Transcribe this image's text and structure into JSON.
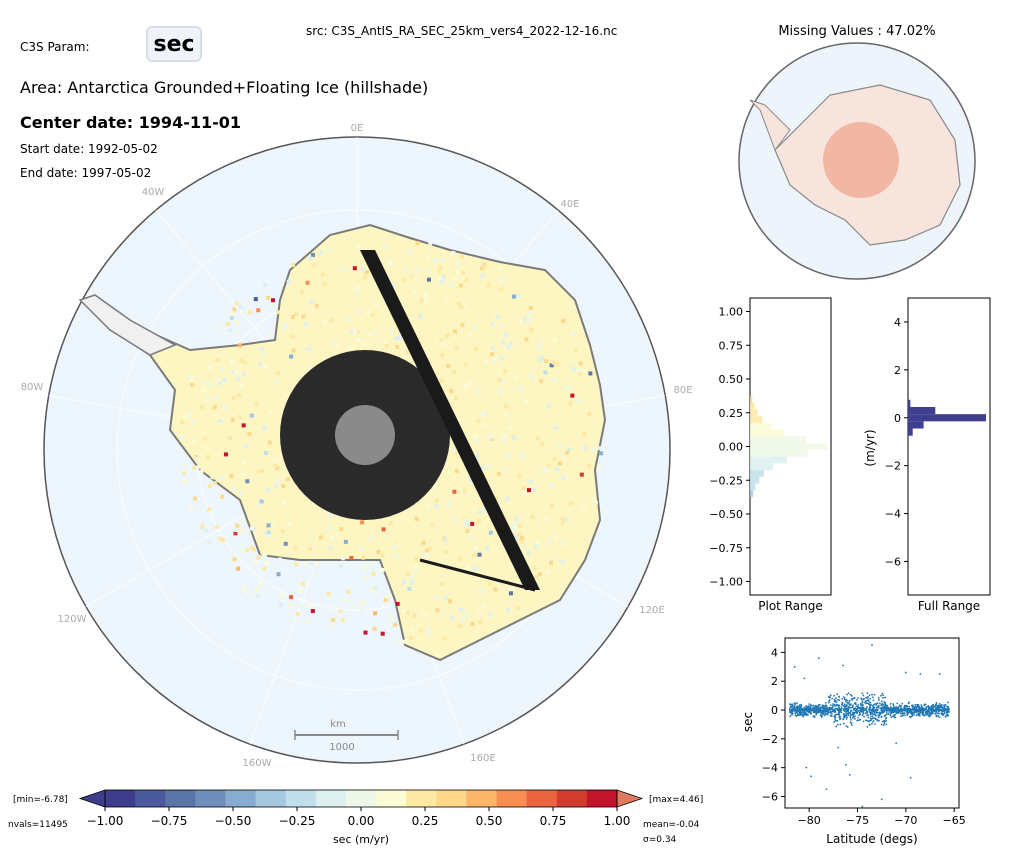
{
  "header": {
    "param_label": "C3S Param:",
    "param_value": "sec",
    "source": "src: C3S_AntIS_RA_SEC_25km_vers4_2022-12-16.nc",
    "area": "Area: Antarctica Grounded+Floating Ice (hillshade)",
    "center_date": "Center date: 1994-11-01",
    "start_date": "Start date: 1992-05-02",
    "end_date": "End date: 1997-05-02"
  },
  "map": {
    "longitude_labels": [
      "0E",
      "40E",
      "80E",
      "120E",
      "160E",
      "160W",
      "120W",
      "80W",
      "40W"
    ],
    "scale_bar": {
      "unit": "km",
      "value": "1000"
    },
    "colors": {
      "ocean": "#eef6fd",
      "coast": "#7a7a7a",
      "ice_low": "#fdf6c3"
    }
  },
  "mini_map": {
    "title": "Missing Values : 47.02%",
    "colors": {
      "fill": "#f2b7a2"
    }
  },
  "colorbar": {
    "label": "sec (m/yr)",
    "min_label": "[min=-6.78]",
    "max_label": "[max=4.46]",
    "nvals": "nvals=11495",
    "mean": "mean=-0.04",
    "sigma": "σ=0.34",
    "ticks": [
      "−1.00",
      "−0.75",
      "−0.50",
      "−0.25",
      "0.00",
      "0.25",
      "0.50",
      "0.75",
      "1.00"
    ],
    "colors": [
      "#3d3d8c",
      "#4a5a9c",
      "#5a75a8",
      "#6f8fba",
      "#88acd0",
      "#a4c8df",
      "#c0dfea",
      "#dcf0f0",
      "#eef8e8",
      "#fbfbd5",
      "#fde9a3",
      "#fdd888",
      "#fbb66a",
      "#f88e52",
      "#e9643f",
      "#d23c2f",
      "#c4142b"
    ]
  },
  "chart_data": [
    {
      "type": "bar",
      "orientation": "horizontal",
      "xlabel": "Plot Range",
      "ylim": [
        -1.1,
        1.1
      ],
      "yticks": [
        "1.00",
        "0.75",
        "0.50",
        "0.25",
        "0.00",
        "−0.25",
        "−0.50",
        "−0.75",
        "−1.00"
      ],
      "bins": [
        -0.35,
        -0.3,
        -0.25,
        -0.2,
        -0.15,
        -0.1,
        -0.05,
        0.0,
        0.05,
        0.1,
        0.15,
        0.2,
        0.25,
        0.3,
        0.35
      ],
      "counts": [
        0.04,
        0.07,
        0.12,
        0.18,
        0.3,
        0.48,
        0.75,
        1.0,
        0.72,
        0.45,
        0.28,
        0.16,
        0.1,
        0.06,
        0.03
      ]
    },
    {
      "type": "bar",
      "orientation": "horizontal",
      "xlabel": "Full Range",
      "ylabel": "(m/yr)",
      "ylim": [
        -7.4,
        5.0
      ],
      "yticks": [
        "4",
        "2",
        "0",
        "−2",
        "−4",
        "−6"
      ],
      "bins": [
        0.6,
        0.3,
        0.0,
        -0.3,
        -0.6
      ],
      "counts": [
        0.03,
        0.35,
        1.0,
        0.2,
        0.06
      ]
    },
    {
      "type": "scatter",
      "xlabel": "Latitude (degs)",
      "ylabel": "sec",
      "xlim": [
        -82.5,
        -64.5
      ],
      "ylim": [
        -6.8,
        5.0
      ],
      "xticks": [
        "−80",
        "−75",
        "−70",
        "−65"
      ],
      "yticks": [
        "4",
        "2",
        "0",
        "−2",
        "−4",
        "−6"
      ],
      "outliers": [
        [
          -81.5,
          3.0
        ],
        [
          -79,
          3.6
        ],
        [
          -76.5,
          3.1
        ],
        [
          -73.5,
          4.5
        ],
        [
          -70,
          2.6
        ],
        [
          -68.5,
          2.5
        ],
        [
          -80.3,
          -4.0
        ],
        [
          -79.8,
          -4.6
        ],
        [
          -78.2,
          -5.5
        ],
        [
          -76.2,
          -3.8
        ],
        [
          -75.8,
          -4.5
        ],
        [
          -74.5,
          -6.7
        ],
        [
          -72.5,
          -6.2
        ],
        [
          -69.5,
          -4.7
        ],
        [
          -77,
          -2.6
        ],
        [
          -71,
          -2.3
        ],
        [
          -80.5,
          2.2
        ],
        [
          -66.5,
          2.5
        ]
      ],
      "series_color": "#1f77b4"
    }
  ]
}
